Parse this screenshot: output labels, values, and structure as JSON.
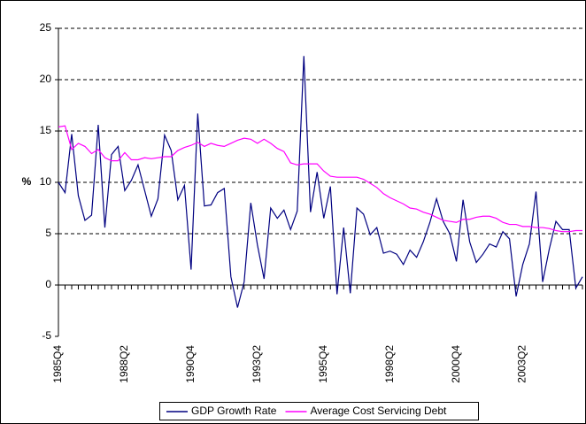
{
  "chart_data": {
    "type": "line",
    "ylabel": "%",
    "categories": [
      "1985Q4",
      null,
      null,
      null,
      null,
      null,
      null,
      null,
      null,
      null,
      "1988Q2",
      null,
      null,
      null,
      null,
      null,
      null,
      null,
      null,
      null,
      "1990Q4",
      null,
      null,
      null,
      null,
      null,
      null,
      null,
      null,
      null,
      "1993Q2",
      null,
      null,
      null,
      null,
      null,
      null,
      null,
      null,
      null,
      "1995Q4",
      null,
      null,
      null,
      null,
      null,
      null,
      null,
      null,
      null,
      "1998Q2",
      null,
      null,
      null,
      null,
      null,
      null,
      null,
      null,
      null,
      "2000Q4",
      null,
      null,
      null,
      null,
      null,
      null,
      null,
      null,
      null,
      "2003Q2",
      null,
      null,
      null,
      null,
      null,
      null,
      null,
      null,
      null
    ],
    "series": [
      {
        "name": "GDP Growth Rate",
        "color": "#000080",
        "values": [
          10.0,
          9.0,
          14.7,
          8.7,
          6.3,
          6.8,
          15.6,
          5.6,
          12.7,
          13.5,
          9.2,
          10.2,
          11.7,
          9.2,
          6.7,
          8.4,
          14.6,
          13.1,
          8.3,
          9.7,
          1.5,
          16.7,
          7.7,
          7.8,
          9.0,
          9.4,
          0.8,
          -2.2,
          0.3,
          8.0,
          3.9,
          0.6,
          7.5,
          6.5,
          7.3,
          5.4,
          7.2,
          22.3,
          7.1,
          11.0,
          6.5,
          9.6,
          -0.9,
          5.6,
          -0.8,
          7.5,
          6.9,
          4.9,
          5.6,
          3.1,
          3.3,
          3.0,
          2.0,
          3.4,
          2.7,
          4.2,
          6.1,
          8.4,
          6.2,
          5.0,
          2.3,
          8.3,
          4.2,
          2.2,
          3.0,
          4.0,
          3.7,
          5.2,
          4.5,
          -1.1,
          2.0,
          4.0,
          9.1,
          0.3,
          3.5,
          6.2,
          5.4,
          5.4,
          -0.3,
          0.8
        ]
      },
      {
        "name": "Average Cost Servicing Debt",
        "color": "#ff00ff",
        "values": [
          15.4,
          15.5,
          13.2,
          13.8,
          13.5,
          12.8,
          13.2,
          12.4,
          12.1,
          12.1,
          12.9,
          12.2,
          12.2,
          12.4,
          12.3,
          12.4,
          12.5,
          12.5,
          13.1,
          13.4,
          13.6,
          13.9,
          13.5,
          13.8,
          13.6,
          13.5,
          13.8,
          14.1,
          14.3,
          14.2,
          13.8,
          14.2,
          13.8,
          13.3,
          13.0,
          11.9,
          11.7,
          11.8,
          11.8,
          11.8,
          11.1,
          10.6,
          10.5,
          10.5,
          10.5,
          10.5,
          10.3,
          9.9,
          9.5,
          8.9,
          8.5,
          8.2,
          7.9,
          7.5,
          7.4,
          7.1,
          6.9,
          6.6,
          6.3,
          6.2,
          6.1,
          6.4,
          6.4,
          6.6,
          6.7,
          6.7,
          6.5,
          6.1,
          5.9,
          5.9,
          5.7,
          5.7,
          5.6,
          5.6,
          5.5,
          5.3,
          5.2,
          5.2,
          5.3,
          5.3
        ]
      }
    ],
    "ylim": [
      -5,
      25
    ],
    "yticks": [
      -5,
      0,
      5,
      10,
      15,
      20,
      25
    ],
    "grid": true,
    "legend": "bottom"
  }
}
